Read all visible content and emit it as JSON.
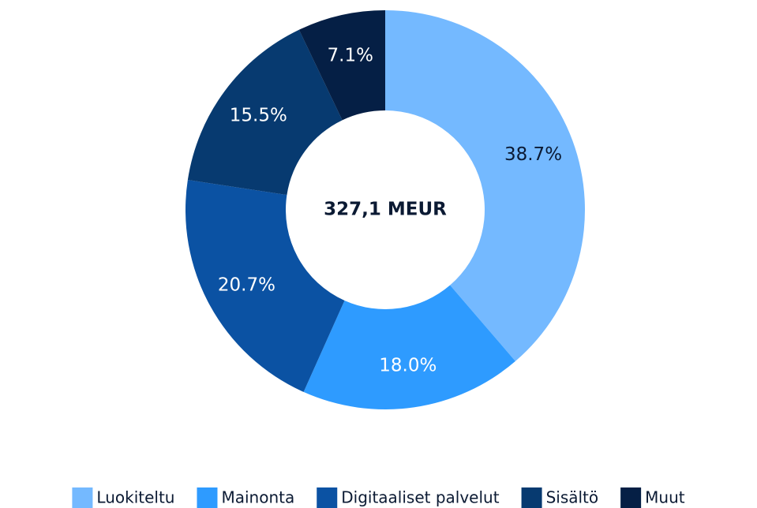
{
  "chart_data": {
    "type": "donut",
    "center_label": "327,1 MEUR",
    "categories": [
      "Luokiteltu",
      "Mainonta",
      "Digitaaliset palvelut",
      "Sisältö",
      "Muut"
    ],
    "values": [
      38.7,
      18.0,
      20.7,
      15.5,
      7.1
    ],
    "value_labels": [
      "38.7%",
      "18.0%",
      "20.7%",
      "15.5%",
      "7.1%"
    ],
    "colors": [
      "#74b9ff",
      "#2e9bff",
      "#0b52a3",
      "#073a70",
      "#051f45"
    ],
    "label_colors": [
      "#0b1a33",
      "#ffffff",
      "#ffffff",
      "#ffffff",
      "#ffffff"
    ],
    "legend": "bottom"
  }
}
